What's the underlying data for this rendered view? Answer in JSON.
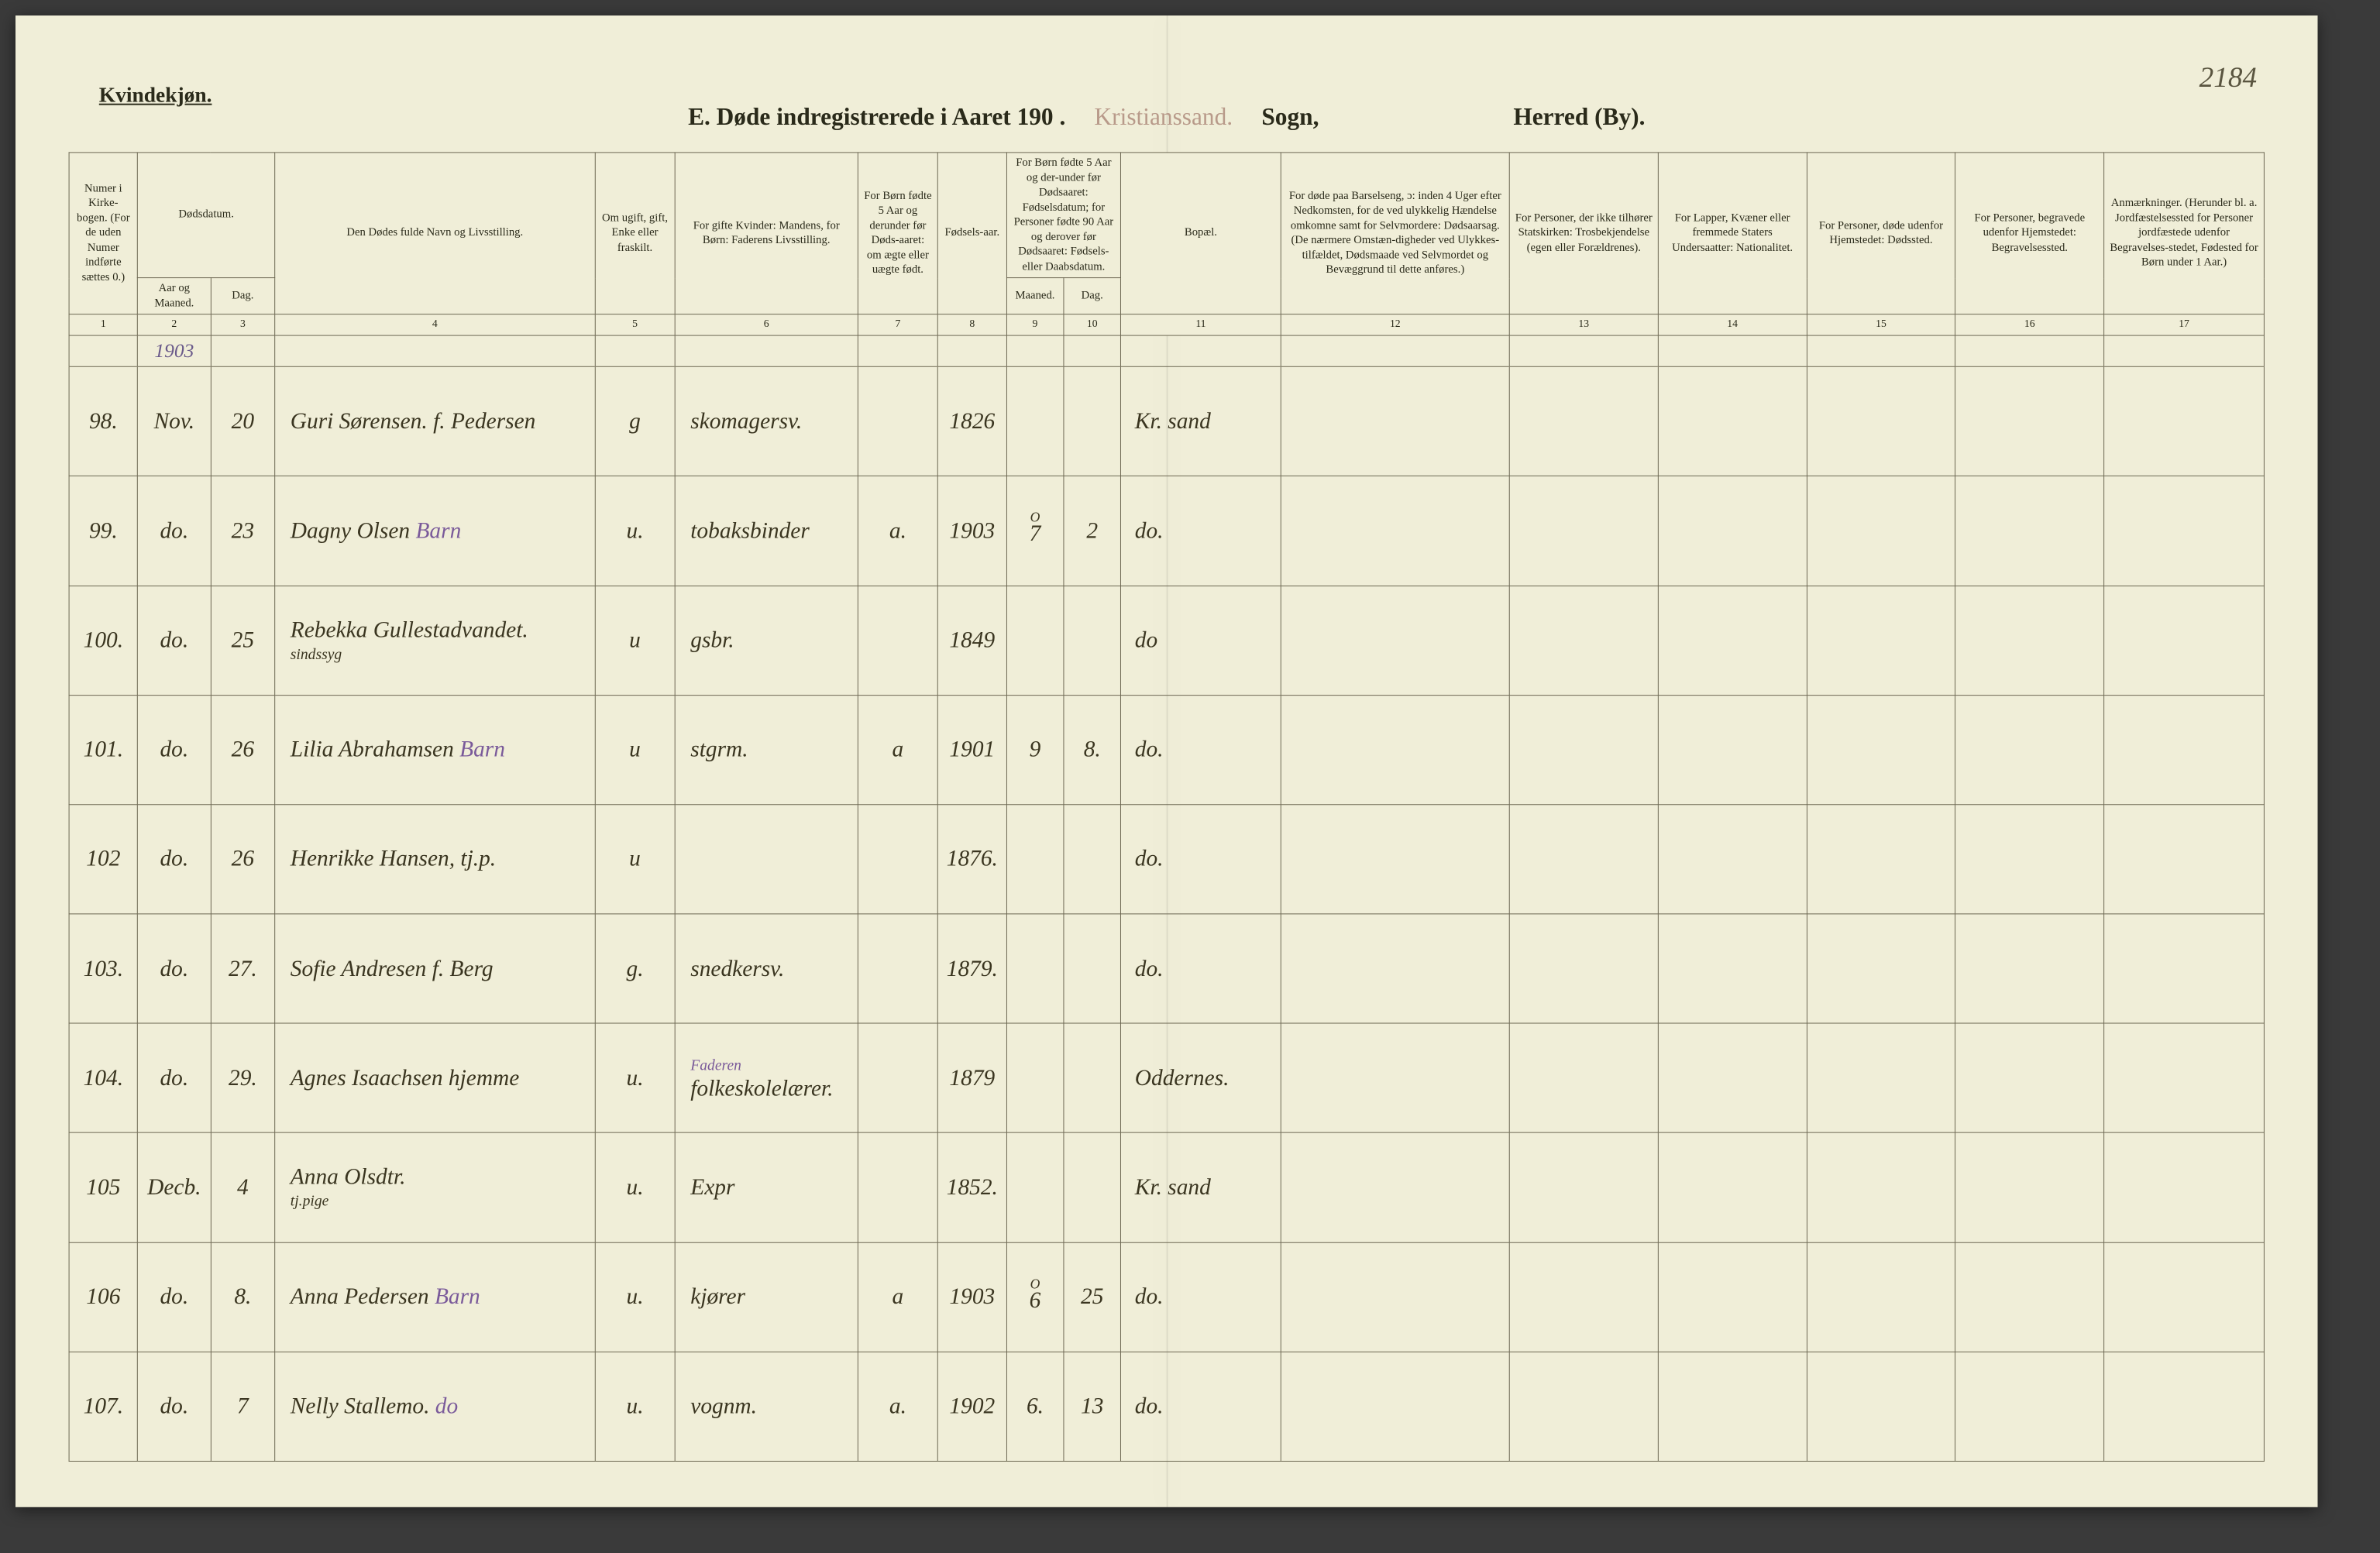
{
  "page_number": "2184",
  "gender_label": "Kvindekjøn.",
  "title": {
    "prefix": "E.  Døde indregistrerede i Aaret 190  .",
    "stamp": "Kristianssand.",
    "sogn": "Sogn,",
    "herred": "Herred (By)."
  },
  "headers": {
    "c1": "Numer i Kirke-bogen. (For de uden Numer indførte sættes 0.)",
    "c2_top": "Dødsdatum.",
    "c2a": "Aar og Maaned.",
    "c2b": "Dag.",
    "c4": "Den Dødes fulde Navn og Livsstilling.",
    "c5": "Om ugift, gift, Enke eller fraskilt.",
    "c6": "For gifte Kvinder: Mandens, for Børn: Faderens Livsstilling.",
    "c7": "For Børn fødte 5 Aar og derunder før Døds-aaret: om ægte eller uægte født.",
    "c8": "Fødsels-aar.",
    "c9_top": "For Børn fødte 5 Aar og der-under før Dødsaaret: Fødselsdatum; for Personer fødte 90 Aar og derover før Dødsaaret: Fødsels- eller Daabsdatum.",
    "c9a": "Maaned.",
    "c9b": "Dag.",
    "c11": "Bopæl.",
    "c12": "For døde paa Barselseng, ɔ: inden 4 Uger efter Nedkomsten, for de ved ulykkelig Hændelse omkomne samt for Selvmordere: Dødsaarsag. (De nærmere Omstæn-digheder ved Ulykkes-tilfældet, Dødsmaade ved Selvmordet og Bevæggrund til dette anføres.)",
    "c13": "For Personer, der ikke tilhører Statskirken: Trosbekjendelse (egen eller Forældrenes).",
    "c14": "For Lapper, Kvæner eller fremmede Staters Undersaatter: Nationalitet.",
    "c15": "For Personer, døde udenfor Hjemstedet: Dødssted.",
    "c16": "For Personer, begravede udenfor Hjemstedet: Begravelsessted.",
    "c17": "Anmærkninger. (Herunder bl. a. Jordfæstelsessted for Personer jordfæstede udenfor Begravelses-stedet, Fødested for Børn under 1 Aar.)"
  },
  "colnums": [
    "1",
    "2",
    "3",
    "4",
    "5",
    "6",
    "7",
    "8",
    "9",
    "10",
    "11",
    "12",
    "13",
    "14",
    "15",
    "16",
    "17"
  ],
  "year_note": "1903",
  "rows": [
    {
      "num": "98.",
      "month": "Nov.",
      "day": "20",
      "name": "Guri Sørensen. f. Pedersen",
      "status": "g",
      "occupation": "skomagersv.",
      "legit": "",
      "birth_year": "1826",
      "b_month": "",
      "b_day": "",
      "bopael": "Kr. sand"
    },
    {
      "num": "99.",
      "month": "do.",
      "day": "23",
      "name": "Dagny Olsen",
      "name_suffix": "Barn",
      "status": "u.",
      "occupation": "tobaksbinder",
      "legit": "a.",
      "birth_year": "1903",
      "b_month_sup": "O",
      "b_month": "7",
      "b_day": "2",
      "bopael": "do."
    },
    {
      "num": "100.",
      "month": "do.",
      "day": "25",
      "name": "Rebekka Gullestadvandet.",
      "name_sub": "sindssyg",
      "status": "u",
      "occupation": "gsbr.",
      "legit": "",
      "birth_year": "1849",
      "b_month": "",
      "b_day": "",
      "bopael": "do"
    },
    {
      "num": "101.",
      "month": "do.",
      "day": "26",
      "name": "Lilia Abrahamsen",
      "name_suffix": "Barn",
      "status": "u",
      "occupation": "stgrm.",
      "legit": "a",
      "birth_year": "1901",
      "b_month": "9",
      "b_day": "8.",
      "bopael": "do."
    },
    {
      "num": "102",
      "month": "do.",
      "day": "26",
      "name": "Henrikke Hansen, tj.p.",
      "status": "u",
      "occupation": "",
      "legit": "",
      "birth_year": "1876.",
      "b_month": "",
      "b_day": "",
      "bopael": "do."
    },
    {
      "num": "103.",
      "month": "do.",
      "day": "27.",
      "name": "Sofie Andresen f. Berg",
      "status": "g.",
      "occupation": "snedkersv.",
      "legit": "",
      "birth_year": "1879.",
      "b_month": "",
      "b_day": "",
      "bopael": "do."
    },
    {
      "num": "104.",
      "month": "do.",
      "day": "29.",
      "name": "Agnes Isaachsen hjemme",
      "status": "u.",
      "occupation_sup": "Faderen",
      "occupation": "folkeskolelærer.",
      "legit": "",
      "birth_year": "1879",
      "b_month": "",
      "b_day": "",
      "bopael": "Oddernes."
    },
    {
      "num": "105",
      "month": "Decb.",
      "day": "4",
      "name": "Anna Olsdtr.",
      "name_sub": "tj.pige",
      "status": "u.",
      "occupation": "Expr",
      "legit": "",
      "birth_year": "1852.",
      "b_month": "",
      "b_day": "",
      "bopael": "Kr. sand"
    },
    {
      "num": "106",
      "month": "do.",
      "day": "8.",
      "name": "Anna Pedersen",
      "name_suffix": "Barn",
      "status": "u.",
      "occupation": "kjører",
      "legit": "a",
      "birth_year": "1903",
      "b_month_sup": "O",
      "b_month": "6",
      "b_day": "25",
      "bopael": "do."
    },
    {
      "num": "107.",
      "month": "do.",
      "day": "7",
      "name": "Nelly Stallemo.",
      "name_suffix": "do",
      "status": "u.",
      "occupation": "vognm.",
      "legit": "a.",
      "birth_year": "1902",
      "b_month": "6.",
      "b_day": "13",
      "bopael": "do."
    }
  ],
  "styling": {
    "page_bg": "#f0eed8",
    "border_color": "#6a6550",
    "text_color": "#2a2a1a",
    "handwriting_color": "#3a3520",
    "purple_ink": "#7a5a9a",
    "stamp_color": "#b89a8a",
    "header_fontsize": 15,
    "body_fontsize": 30,
    "title_fontsize": 32
  }
}
